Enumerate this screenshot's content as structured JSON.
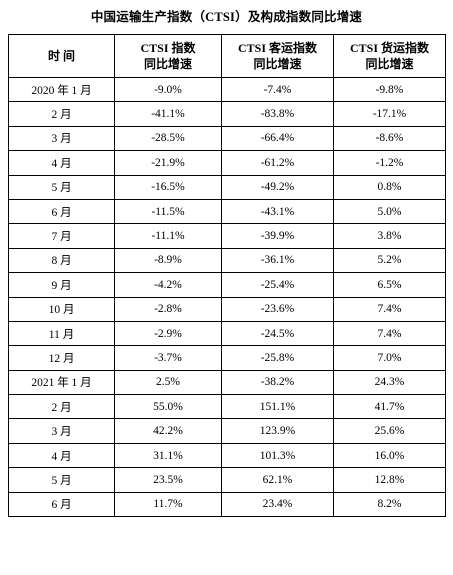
{
  "title": "中国运输生产指数（CTSI）及构成指数同比增速",
  "table": {
    "headers": [
      {
        "line1": "时  间",
        "line2": ""
      },
      {
        "line1": "CTSI 指数",
        "line2": "同比增速"
      },
      {
        "line1": "CTSI 客运指数",
        "line2": "同比增速"
      },
      {
        "line1": "CTSI 货运指数",
        "line2": "同比增速"
      }
    ],
    "rows": [
      [
        "2020 年 1 月",
        "-9.0%",
        "-7.4%",
        "-9.8%"
      ],
      [
        "2 月",
        "-41.1%",
        "-83.8%",
        "-17.1%"
      ],
      [
        "3 月",
        "-28.5%",
        "-66.4%",
        "-8.6%"
      ],
      [
        "4 月",
        "-21.9%",
        "-61.2%",
        "-1.2%"
      ],
      [
        "5 月",
        "-16.5%",
        "-49.2%",
        "0.8%"
      ],
      [
        "6 月",
        "-11.5%",
        "-43.1%",
        "5.0%"
      ],
      [
        "7 月",
        "-11.1%",
        "-39.9%",
        "3.8%"
      ],
      [
        "8 月",
        "-8.9%",
        "-36.1%",
        "5.2%"
      ],
      [
        "9 月",
        "-4.2%",
        "-25.4%",
        "6.5%"
      ],
      [
        "10 月",
        "-2.8%",
        "-23.6%",
        "7.4%"
      ],
      [
        "11 月",
        "-2.9%",
        "-24.5%",
        "7.4%"
      ],
      [
        "12 月",
        "-3.7%",
        "-25.8%",
        "7.0%"
      ],
      [
        "2021 年 1 月",
        "2.5%",
        "-38.2%",
        "24.3%"
      ],
      [
        "2 月",
        "55.0%",
        "151.1%",
        "41.7%"
      ],
      [
        "3 月",
        "42.2%",
        "123.9%",
        "25.6%"
      ],
      [
        "4 月",
        "31.1%",
        "101.3%",
        "16.0%"
      ],
      [
        "5 月",
        "23.5%",
        "62.1%",
        "12.8%"
      ],
      [
        "6 月",
        "11.7%",
        "23.4%",
        "8.2%"
      ]
    ]
  }
}
